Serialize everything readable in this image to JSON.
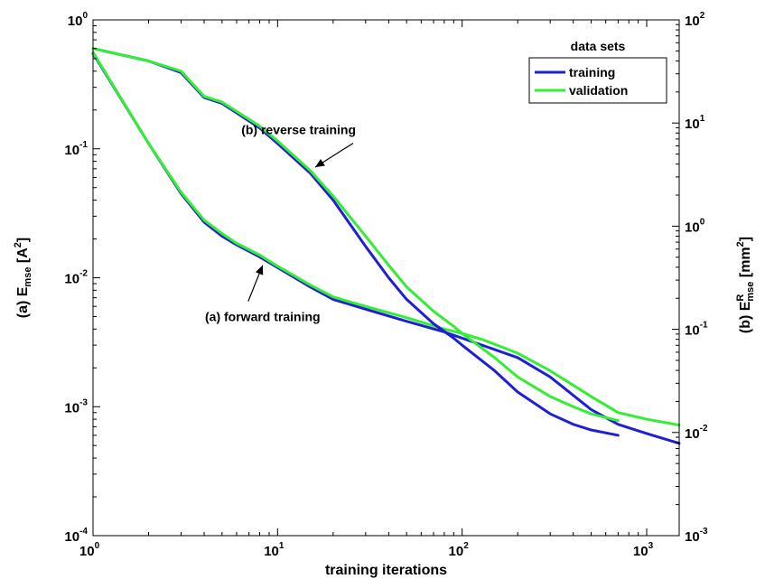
{
  "chart_data": {
    "type": "line",
    "xlabel": "training iterations",
    "ylabel_left": {
      "prefix": "(a) E",
      "sub": "mse",
      "unit_pre": " [A",
      "unit_sup": "2",
      "unit_post": "]"
    },
    "ylabel_right": {
      "prefix": "(b) E",
      "sup": "R",
      "sub": "mse",
      "unit_pre": " [mm",
      "unit_sup": "2",
      "unit_post": "]"
    },
    "x_scale": "log",
    "y_scale": "log",
    "xlim": [
      1,
      1500
    ],
    "ylim_left": [
      0.0001,
      1
    ],
    "ylim_right": [
      0.001,
      100
    ],
    "grid": false,
    "legend": {
      "title": "data sets",
      "position": "top-right",
      "entries": [
        {
          "name": "training",
          "color": "#1f1fd6"
        },
        {
          "name": "validation",
          "color": "#33ee33"
        }
      ]
    },
    "x_ticks": [
      {
        "base": "10",
        "exp": "0",
        "value": 1
      },
      {
        "base": "10",
        "exp": "1",
        "value": 10
      },
      {
        "base": "10",
        "exp": "2",
        "value": 100
      },
      {
        "base": "10",
        "exp": "3",
        "value": 1000
      }
    ],
    "y_ticks_left": [
      {
        "base": "10",
        "exp": "0",
        "value": 1
      },
      {
        "base": "10",
        "exp": "-1",
        "value": 0.1
      },
      {
        "base": "10",
        "exp": "-2",
        "value": 0.01
      },
      {
        "base": "10",
        "exp": "-3",
        "value": 0.001
      },
      {
        "base": "10",
        "exp": "-4",
        "value": 0.0001
      }
    ],
    "y_ticks_right": [
      {
        "base": "10",
        "exp": "2",
        "value": 100
      },
      {
        "base": "10",
        "exp": "1",
        "value": 10
      },
      {
        "base": "10",
        "exp": "0",
        "value": 1
      },
      {
        "base": "10",
        "exp": "-1",
        "value": 0.1
      },
      {
        "base": "10",
        "exp": "-2",
        "value": 0.01
      },
      {
        "base": "10",
        "exp": "-3",
        "value": 0.001
      }
    ],
    "annotations": [
      {
        "text": "(b) reverse training",
        "arrow_to": [
          16,
          0.072
        ],
        "text_at": [
          13,
          0.13
        ]
      },
      {
        "text": "(a) forward training",
        "arrow_to": [
          8.3,
          0.0125
        ],
        "text_at": [
          8.3,
          0.0046
        ]
      }
    ],
    "series": [
      {
        "name": "training",
        "group": "(a) forward training",
        "axis": "left",
        "color": "#1f1fd6",
        "points": [
          [
            1,
            0.55
          ],
          [
            2,
            0.11
          ],
          [
            3,
            0.045
          ],
          [
            4,
            0.027
          ],
          [
            5,
            0.021
          ],
          [
            6,
            0.018
          ],
          [
            8,
            0.0145
          ],
          [
            10,
            0.012
          ],
          [
            15,
            0.0085
          ],
          [
            20,
            0.0068
          ],
          [
            30,
            0.0057
          ],
          [
            50,
            0.0046
          ],
          [
            80,
            0.0038
          ],
          [
            100,
            0.0034
          ],
          [
            200,
            0.0024
          ],
          [
            300,
            0.0017
          ],
          [
            500,
            0.00095
          ],
          [
            700,
            0.00073
          ],
          [
            1000,
            0.00062
          ],
          [
            1500,
            0.00052
          ]
        ]
      },
      {
        "name": "validation",
        "group": "(a) forward training",
        "axis": "left",
        "color": "#33ee33",
        "points": [
          [
            1,
            0.56
          ],
          [
            2,
            0.11
          ],
          [
            3,
            0.046
          ],
          [
            4,
            0.028
          ],
          [
            5,
            0.022
          ],
          [
            6,
            0.0185
          ],
          [
            8,
            0.015
          ],
          [
            10,
            0.0123
          ],
          [
            15,
            0.0088
          ],
          [
            20,
            0.0071
          ],
          [
            30,
            0.006
          ],
          [
            50,
            0.0049
          ],
          [
            80,
            0.004
          ],
          [
            100,
            0.0037
          ],
          [
            130,
            0.0033
          ],
          [
            200,
            0.0026
          ],
          [
            300,
            0.0019
          ],
          [
            500,
            0.0012
          ],
          [
            700,
            0.0009
          ],
          [
            1000,
            0.0008
          ],
          [
            1500,
            0.00072
          ]
        ]
      },
      {
        "name": "training",
        "group": "(b) reverse training",
        "axis": "left",
        "color": "#1f1fd6",
        "points": [
          [
            1,
            0.6
          ],
          [
            2,
            0.48
          ],
          [
            3,
            0.39
          ],
          [
            4,
            0.25
          ],
          [
            5,
            0.225
          ],
          [
            6,
            0.19
          ],
          [
            8,
            0.145
          ],
          [
            10,
            0.11
          ],
          [
            15,
            0.065
          ],
          [
            20,
            0.04
          ],
          [
            30,
            0.0175
          ],
          [
            40,
            0.01
          ],
          [
            50,
            0.0068
          ],
          [
            70,
            0.0044
          ],
          [
            90,
            0.0034
          ],
          [
            100,
            0.003
          ],
          [
            150,
            0.0019
          ],
          [
            200,
            0.0013
          ],
          [
            300,
            0.00088
          ],
          [
            400,
            0.00073
          ],
          [
            500,
            0.00066
          ],
          [
            700,
            0.0006
          ]
        ]
      },
      {
        "name": "validation",
        "group": "(b) reverse training",
        "axis": "left",
        "color": "#33ee33",
        "points": [
          [
            1,
            0.6
          ],
          [
            2,
            0.48
          ],
          [
            3,
            0.4
          ],
          [
            4,
            0.255
          ],
          [
            5,
            0.23
          ],
          [
            6,
            0.195
          ],
          [
            8,
            0.15
          ],
          [
            10,
            0.115
          ],
          [
            15,
            0.068
          ],
          [
            20,
            0.043
          ],
          [
            30,
            0.021
          ],
          [
            40,
            0.0125
          ],
          [
            50,
            0.0085
          ],
          [
            70,
            0.0055
          ],
          [
            90,
            0.0042
          ],
          [
            100,
            0.0037
          ],
          [
            150,
            0.0024
          ],
          [
            200,
            0.0017
          ],
          [
            300,
            0.0012
          ],
          [
            400,
            0.001
          ],
          [
            500,
            0.00088
          ],
          [
            700,
            0.00078
          ]
        ]
      }
    ]
  }
}
